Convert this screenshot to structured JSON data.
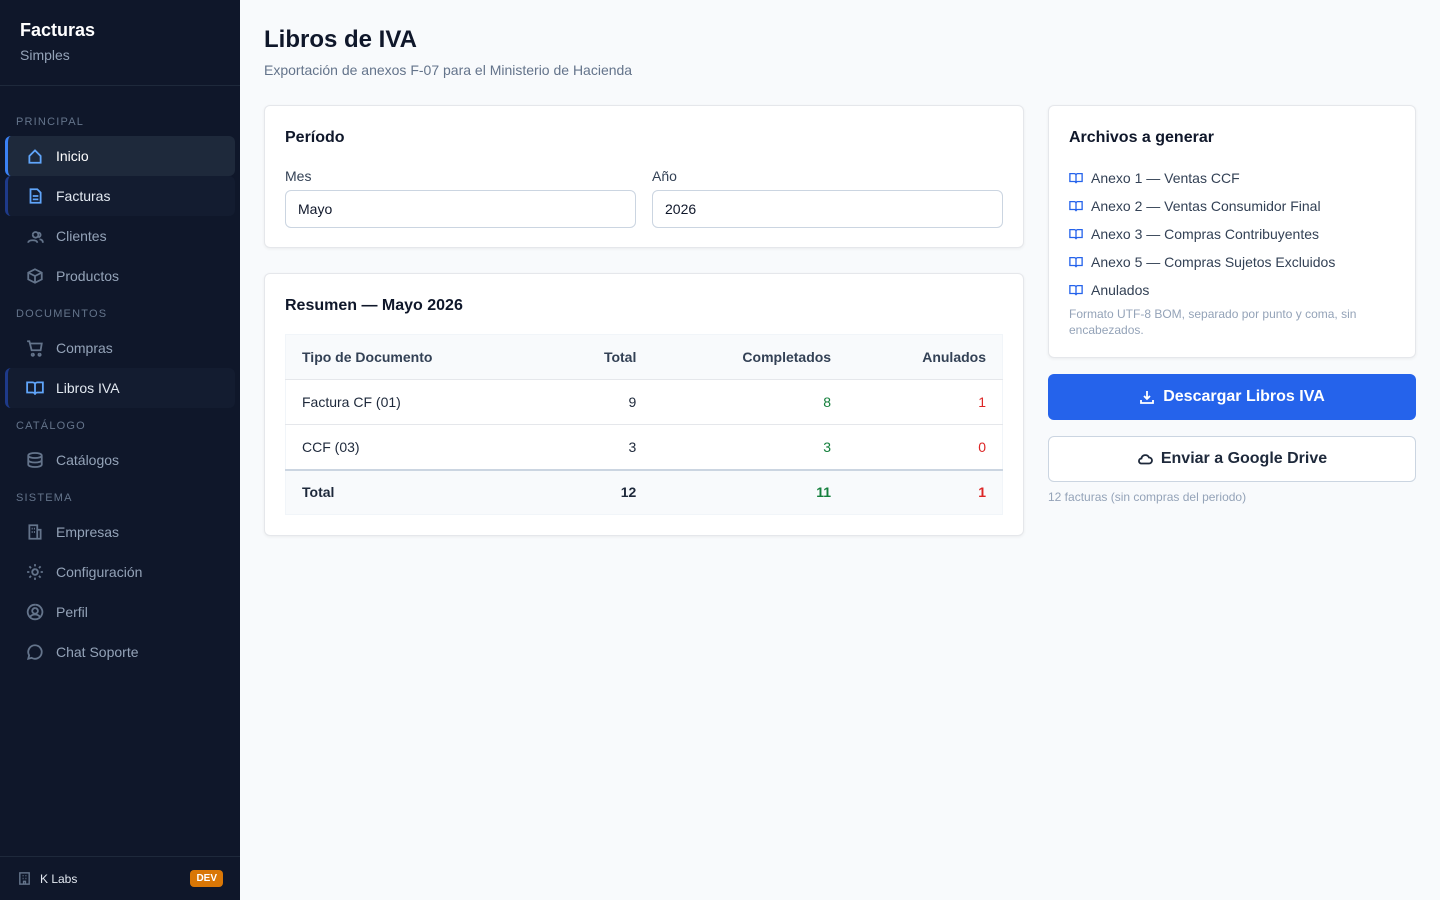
{
  "sidebar": {
    "brand": "Facturas",
    "subtitle": "Simples",
    "sections": [
      {
        "title": "PRINCIPAL",
        "items": [
          "Inicio",
          "Facturas",
          "Clientes",
          "Productos"
        ]
      },
      {
        "title": "DOCUMENTOS",
        "items": [
          "Compras",
          "Libros IVA"
        ]
      },
      {
        "title": "CATÁLOGO",
        "items": [
          "Catálogos"
        ]
      },
      {
        "title": "SISTEMA",
        "items": [
          "Empresas",
          "Configuración",
          "Perfil",
          "Chat Soporte"
        ]
      }
    ],
    "footer": {
      "org": "K Labs",
      "badge": "DEV"
    }
  },
  "header": {
    "title": "Libros de IVA",
    "subtitle": "Exportación de anexos F-07 para el Ministerio de Hacienda"
  },
  "period": {
    "title": "Período",
    "month_label": "Mes",
    "month": "Mayo",
    "year_label": "Año",
    "year": "2026"
  },
  "summary": {
    "title": "Resumen — Mayo 2026",
    "columns": [
      "Tipo de Documento",
      "Total",
      "Completados",
      "Anulados"
    ],
    "rows": [
      [
        "Factura CF (01)",
        9,
        8,
        1
      ],
      [
        "CCF (03)",
        3,
        3,
        0
      ]
    ],
    "total": [
      "Total",
      12,
      11,
      1
    ]
  },
  "files": {
    "title": "Archivos a generar",
    "items": [
      "Anexo 1 — Ventas CCF",
      "Anexo 2 — Ventas Consumidor Final",
      "Anexo 3 — Compras Contribuyentes",
      "Anexo 5 — Compras Sujetos Excluidos",
      "Anulados"
    ],
    "note": "Formato UTF-8 BOM, separado por punto y coma, sin encabezados."
  },
  "actions": {
    "download": "Descargar Libros IVA",
    "drive": "Enviar a Google Drive",
    "note": "12 facturas (sin compras del periodo)"
  }
}
